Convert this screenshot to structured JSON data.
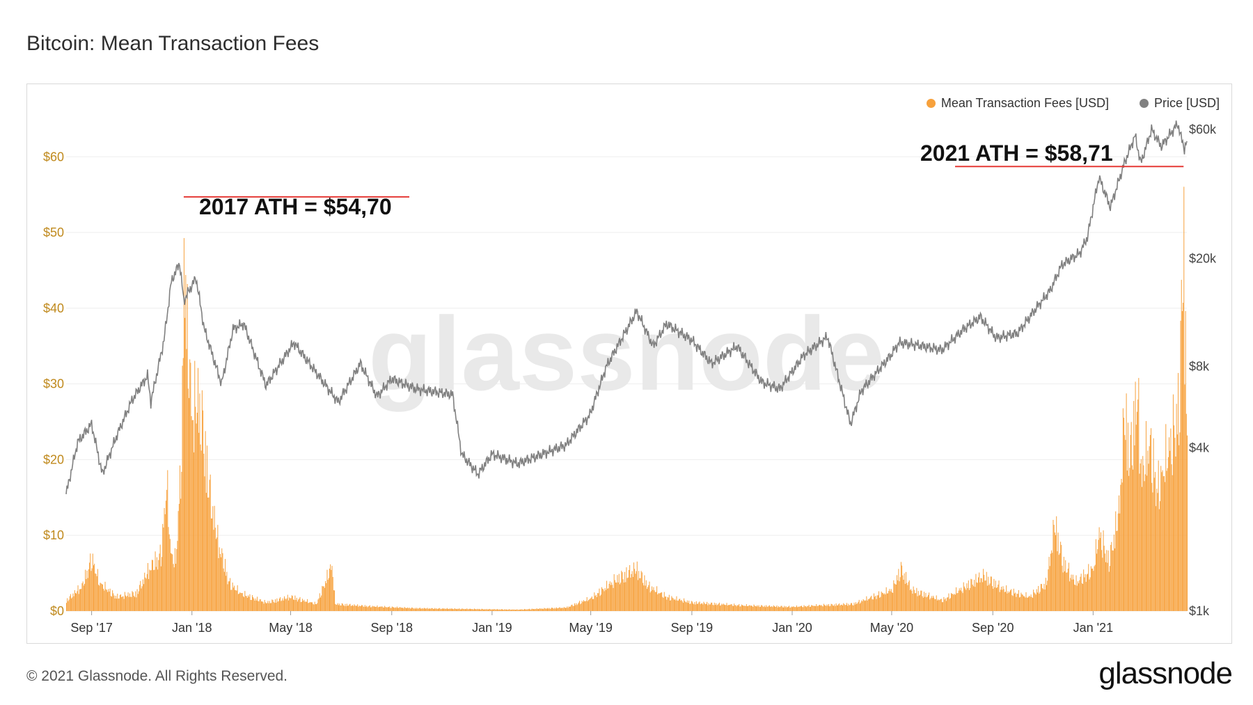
{
  "title": "Bitcoin: Mean Transaction Fees",
  "copyright": "© 2021 Glassnode. All Rights Reserved.",
  "brand": "glassnode",
  "watermark": "glassnode",
  "legend": [
    {
      "label": "Mean Transaction Fees [USD]",
      "color": "#f7a13c"
    },
    {
      "label": "Price [USD]",
      "color": "#808080"
    }
  ],
  "annotations": [
    {
      "text": "2017 ATH = $54,70"
    },
    {
      "text": "2021 ATH = $58,71"
    }
  ],
  "chart_data": {
    "type": "bar",
    "x_range": [
      "2017-08-01",
      "2021-04-25"
    ],
    "x_ticks": [
      "Sep '17",
      "Jan '18",
      "May '18",
      "Sep '18",
      "Jan '19",
      "May '19",
      "Sep '19",
      "Jan '20",
      "May '20",
      "Sep '20",
      "Jan '21"
    ],
    "y_left": {
      "ticks": [
        "$0",
        "$10",
        "$20",
        "$30",
        "$40",
        "$50",
        "$60"
      ],
      "range": [
        0,
        66
      ]
    },
    "y_right": {
      "scale": "log",
      "ticks": [
        "$1k",
        "$4k",
        "$8k",
        "$20k",
        "$60k"
      ],
      "range": [
        1000,
        70000
      ]
    },
    "grid": true,
    "legend_position": "top-right",
    "series": [
      {
        "name": "Mean Transaction Fees [USD]",
        "color": "#f7a13c",
        "axis": "left",
        "points": [
          [
            "2017-08-01",
            1.5
          ],
          [
            "2017-08-20",
            3.5
          ],
          [
            "2017-09-01",
            7.5
          ],
          [
            "2017-09-10",
            4.0
          ],
          [
            "2017-10-01",
            2.0
          ],
          [
            "2017-10-25",
            2.5
          ],
          [
            "2017-11-10",
            6.0
          ],
          [
            "2017-11-24",
            8.0
          ],
          [
            "2017-12-01",
            18.0
          ],
          [
            "2017-12-06",
            8.0
          ],
          [
            "2017-12-12",
            7.0
          ],
          [
            "2017-12-18",
            20.0
          ],
          [
            "2017-12-21",
            34.0
          ],
          [
            "2017-12-22",
            54.7
          ],
          [
            "2017-12-26",
            38.0
          ],
          [
            "2018-01-01",
            28.0
          ],
          [
            "2018-01-08",
            30.0
          ],
          [
            "2018-01-15",
            25.0
          ],
          [
            "2018-01-22",
            17.0
          ],
          [
            "2018-02-01",
            10.0
          ],
          [
            "2018-02-15",
            4.0
          ],
          [
            "2018-03-01",
            2.5
          ],
          [
            "2018-04-01",
            1.2
          ],
          [
            "2018-05-01",
            2.0
          ],
          [
            "2018-06-01",
            1.0
          ],
          [
            "2018-06-20",
            6.5
          ],
          [
            "2018-06-24",
            1.0
          ],
          [
            "2018-08-01",
            0.7
          ],
          [
            "2018-10-01",
            0.4
          ],
          [
            "2018-12-01",
            0.3
          ],
          [
            "2019-02-01",
            0.2
          ],
          [
            "2019-04-01",
            0.5
          ],
          [
            "2019-05-01",
            1.8
          ],
          [
            "2019-06-01",
            4.5
          ],
          [
            "2019-06-25",
            6.0
          ],
          [
            "2019-07-10",
            3.5
          ],
          [
            "2019-08-01",
            2.0
          ],
          [
            "2019-09-01",
            1.2
          ],
          [
            "2019-11-01",
            0.8
          ],
          [
            "2020-01-01",
            0.6
          ],
          [
            "2020-02-01",
            0.8
          ],
          [
            "2020-03-15",
            1.0
          ],
          [
            "2020-05-01",
            3.0
          ],
          [
            "2020-05-12",
            6.0
          ],
          [
            "2020-05-25",
            3.0
          ],
          [
            "2020-07-01",
            1.5
          ],
          [
            "2020-08-20",
            5.0
          ],
          [
            "2020-09-15",
            3.0
          ],
          [
            "2020-10-15",
            2.0
          ],
          [
            "2020-11-05",
            4.0
          ],
          [
            "2020-11-15",
            12.5
          ],
          [
            "2020-11-25",
            7.0
          ],
          [
            "2020-12-10",
            4.0
          ],
          [
            "2021-01-01",
            6.0
          ],
          [
            "2021-01-08",
            11.0
          ],
          [
            "2021-01-20",
            7.0
          ],
          [
            "2021-02-01",
            14.0
          ],
          [
            "2021-02-08",
            28.0
          ],
          [
            "2021-02-15",
            22.0
          ],
          [
            "2021-02-23",
            31.0
          ],
          [
            "2021-03-01",
            19.0
          ],
          [
            "2021-03-10",
            24.0
          ],
          [
            "2021-03-20",
            17.0
          ],
          [
            "2021-04-01",
            22.0
          ],
          [
            "2021-04-10",
            26.0
          ],
          [
            "2021-04-16",
            30.0
          ],
          [
            "2021-04-18",
            42.0
          ],
          [
            "2021-04-20",
            50.0
          ],
          [
            "2021-04-21",
            58.71
          ],
          [
            "2021-04-22",
            40.0
          ],
          [
            "2021-04-24",
            30.0
          ],
          [
            "2021-04-25",
            28.0
          ]
        ]
      },
      {
        "name": "Price [USD]",
        "color": "#808080",
        "axis": "right",
        "points": [
          [
            "2017-08-01",
            2700
          ],
          [
            "2017-08-15",
            4200
          ],
          [
            "2017-09-01",
            4900
          ],
          [
            "2017-09-14",
            3200
          ],
          [
            "2017-10-01",
            4400
          ],
          [
            "2017-10-20",
            6000
          ],
          [
            "2017-11-08",
            7400
          ],
          [
            "2017-11-12",
            5900
          ],
          [
            "2017-11-28",
            10000
          ],
          [
            "2017-12-07",
            16500
          ],
          [
            "2017-12-17",
            19300
          ],
          [
            "2017-12-22",
            14000
          ],
          [
            "2018-01-06",
            17000
          ],
          [
            "2018-01-16",
            11000
          ],
          [
            "2018-02-06",
            6900
          ],
          [
            "2018-02-20",
            11000
          ],
          [
            "2018-03-05",
            11500
          ],
          [
            "2018-04-01",
            6800
          ],
          [
            "2018-05-05",
            9800
          ],
          [
            "2018-06-28",
            5900
          ],
          [
            "2018-07-25",
            8200
          ],
          [
            "2018-08-14",
            6200
          ],
          [
            "2018-09-01",
            7200
          ],
          [
            "2018-10-01",
            6600
          ],
          [
            "2018-11-14",
            6300
          ],
          [
            "2018-11-25",
            3800
          ],
          [
            "2018-12-15",
            3200
          ],
          [
            "2019-01-01",
            3800
          ],
          [
            "2019-02-01",
            3500
          ],
          [
            "2019-04-01",
            4100
          ],
          [
            "2019-04-30",
            5300
          ],
          [
            "2019-05-20",
            8000
          ],
          [
            "2019-06-26",
            12800
          ],
          [
            "2019-07-16",
            9500
          ],
          [
            "2019-08-01",
            11500
          ],
          [
            "2019-09-01",
            10000
          ],
          [
            "2019-09-25",
            8200
          ],
          [
            "2019-10-26",
            9500
          ],
          [
            "2019-11-25",
            7000
          ],
          [
            "2019-12-17",
            6600
          ],
          [
            "2020-01-15",
            8800
          ],
          [
            "2020-02-13",
            10300
          ],
          [
            "2020-03-12",
            4900
          ],
          [
            "2020-03-25",
            6500
          ],
          [
            "2020-04-30",
            8800
          ],
          [
            "2020-05-10",
            9800
          ],
          [
            "2020-06-01",
            9600
          ],
          [
            "2020-07-01",
            9200
          ],
          [
            "2020-07-28",
            11000
          ],
          [
            "2020-08-17",
            12200
          ],
          [
            "2020-09-05",
            10200
          ],
          [
            "2020-10-01",
            10600
          ],
          [
            "2020-10-21",
            12800
          ],
          [
            "2020-11-10",
            15300
          ],
          [
            "2020-11-24",
            19000
          ],
          [
            "2020-12-16",
            21000
          ],
          [
            "2020-12-25",
            24000
          ],
          [
            "2021-01-08",
            40000
          ],
          [
            "2021-01-22",
            31000
          ],
          [
            "2021-02-08",
            45000
          ],
          [
            "2021-02-21",
            57000
          ],
          [
            "2021-02-28",
            45000
          ],
          [
            "2021-03-13",
            60000
          ],
          [
            "2021-03-25",
            52000
          ],
          [
            "2021-04-14",
            63000
          ],
          [
            "2021-04-18",
            56000
          ],
          [
            "2021-04-22",
            51000
          ],
          [
            "2021-04-25",
            54000
          ]
        ]
      }
    ]
  }
}
